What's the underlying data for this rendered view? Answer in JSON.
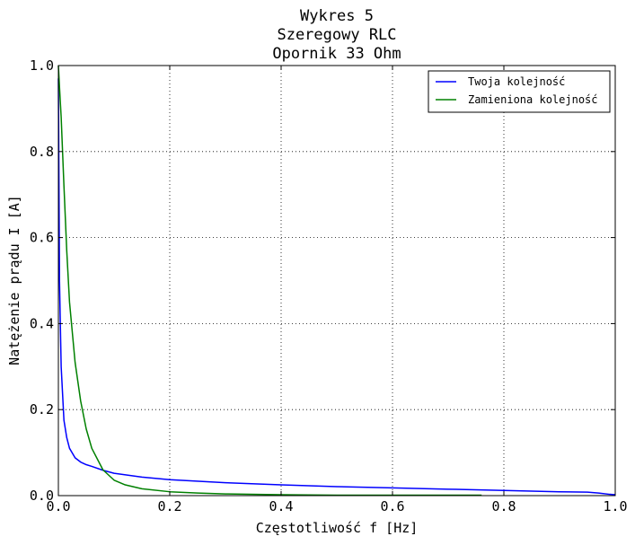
{
  "chart_data": {
    "type": "line",
    "title": [
      "Wykres 5",
      "Szeregowy RLC",
      "Opornik 33 Ohm"
    ],
    "xlabel": "Częstotliwość f [Hz]",
    "ylabel": "Natężenie prądu I [A]",
    "xlim": [
      0.0,
      1.0
    ],
    "ylim": [
      0.0,
      1.0
    ],
    "x_ticks": [
      "0.0",
      "0.2",
      "0.4",
      "0.6",
      "0.8",
      "1.0"
    ],
    "y_ticks": [
      "0.0",
      "0.2",
      "0.4",
      "0.6",
      "0.8",
      "1.0"
    ],
    "grid": true,
    "legend_position": "top-right",
    "series": [
      {
        "name": "Twoja kolejność",
        "color": "#0000ff",
        "x": [
          0.0,
          0.002,
          0.005,
          0.01,
          0.015,
          0.02,
          0.03,
          0.04,
          0.05,
          0.06,
          0.08,
          0.1,
          0.15,
          0.2,
          0.3,
          0.4,
          0.5,
          0.6,
          0.7,
          0.8,
          0.9,
          0.95,
          0.97,
          0.99,
          1.0
        ],
        "y": [
          0.97,
          0.5,
          0.3,
          0.175,
          0.135,
          0.11,
          0.088,
          0.078,
          0.072,
          0.068,
          0.059,
          0.052,
          0.043,
          0.037,
          0.03,
          0.025,
          0.021,
          0.018,
          0.015,
          0.012,
          0.009,
          0.008,
          0.006,
          0.003,
          0.002
        ]
      },
      {
        "name": "Zamieniona kolejność",
        "color": "#008000",
        "x": [
          0.0,
          0.002,
          0.005,
          0.01,
          0.015,
          0.02,
          0.03,
          0.04,
          0.05,
          0.06,
          0.08,
          0.1,
          0.12,
          0.15,
          0.2,
          0.25,
          0.3,
          0.4,
          0.5,
          0.6,
          0.7,
          0.76
        ],
        "y": [
          1.0,
          0.95,
          0.88,
          0.72,
          0.57,
          0.45,
          0.31,
          0.22,
          0.155,
          0.11,
          0.06,
          0.036,
          0.025,
          0.016,
          0.009,
          0.006,
          0.004,
          0.002,
          0.001,
          0.001,
          0.001,
          0.001
        ]
      }
    ]
  }
}
